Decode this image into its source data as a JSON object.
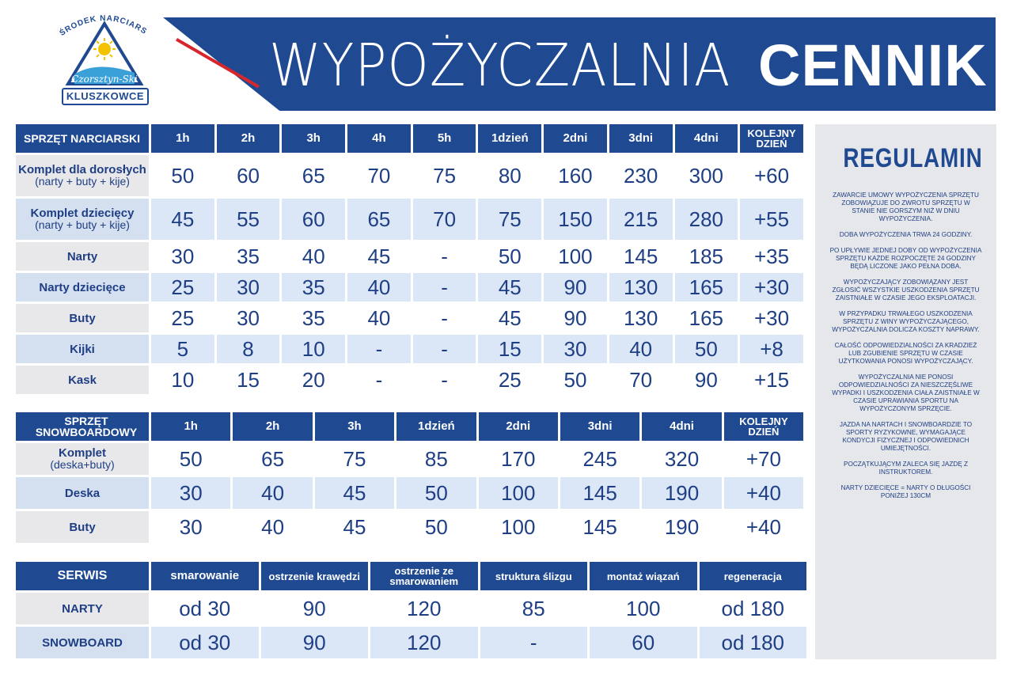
{
  "logo": {
    "arc_top": "OŚRODEK NARCIARSKI",
    "script": "Czorsztyn-Ski",
    "name": "KLUSZKOWCE"
  },
  "title": {
    "light": "WYPOŻYCZALNIA",
    "bold": "CENNIK"
  },
  "ski": {
    "header": "SPRZĘT NARCIARSKI",
    "columns": [
      "1h",
      "2h",
      "3h",
      "4h",
      "5h",
      "1dzień",
      "2dni",
      "3dni",
      "4dni",
      "KOLEJNY DZIEŃ"
    ],
    "rows": [
      {
        "label": "Komplet dla dorosłych",
        "sub": "(narty + buty + kije)",
        "values": [
          "50",
          "60",
          "65",
          "70",
          "75",
          "80",
          "160",
          "230",
          "300",
          "+60"
        ]
      },
      {
        "label": "Komplet dziecięcy",
        "sub": "(narty + buty + kije)",
        "values": [
          "45",
          "55",
          "60",
          "65",
          "70",
          "75",
          "150",
          "215",
          "280",
          "+55"
        ]
      },
      {
        "label": "Narty",
        "sub": "",
        "values": [
          "30",
          "35",
          "40",
          "45",
          "-",
          "50",
          "100",
          "145",
          "185",
          "+35"
        ]
      },
      {
        "label": "Narty dziecięce",
        "sub": "",
        "values": [
          "25",
          "30",
          "35",
          "40",
          "-",
          "45",
          "90",
          "130",
          "165",
          "+30"
        ]
      },
      {
        "label": "Buty",
        "sub": "",
        "values": [
          "25",
          "30",
          "35",
          "40",
          "-",
          "45",
          "90",
          "130",
          "165",
          "+30"
        ]
      },
      {
        "label": "Kijki",
        "sub": "",
        "values": [
          "5",
          "8",
          "10",
          "-",
          "-",
          "15",
          "30",
          "40",
          "50",
          "+8"
        ]
      },
      {
        "label": "Kask",
        "sub": "",
        "values": [
          "10",
          "15",
          "20",
          "-",
          "-",
          "25",
          "50",
          "70",
          "90",
          "+15"
        ]
      }
    ]
  },
  "snowboard": {
    "header": "SPRZĘT SNOWBOARDOWY",
    "columns": [
      "1h",
      "2h",
      "3h",
      "1dzień",
      "2dni",
      "3dni",
      "4dni",
      "KOLEJNY DZIEŃ"
    ],
    "rows": [
      {
        "label": "Komplet",
        "sub": "(deska+buty)",
        "values": [
          "50",
          "65",
          "75",
          "85",
          "170",
          "245",
          "320",
          "+70"
        ]
      },
      {
        "label": "Deska",
        "sub": "",
        "values": [
          "30",
          "40",
          "45",
          "50",
          "100",
          "145",
          "190",
          "+40"
        ]
      },
      {
        "label": "Buty",
        "sub": "",
        "values": [
          "30",
          "40",
          "45",
          "50",
          "100",
          "145",
          "190",
          "+40"
        ]
      }
    ]
  },
  "service": {
    "header": "SERWIS",
    "columns": [
      "smarowanie",
      "ostrzenie krawędzi",
      "ostrzenie ze smarowaniem",
      "struktura ślizgu",
      "montaż wiązań",
      "regeneracja"
    ],
    "rows": [
      {
        "label": "NARTY",
        "values": [
          "od 30",
          "90",
          "120",
          "85",
          "100",
          "od 180"
        ]
      },
      {
        "label": "SNOWBOARD",
        "values": [
          "od 30",
          "90",
          "120",
          "-",
          "60",
          "od 180"
        ]
      }
    ]
  },
  "regulamin": {
    "title": "REGULAMIN",
    "paragraphs": [
      "Zawarcie umowy wypożyczenia sprzętu zobowiązuje do zwrotu sprzętu w stanie nie gorszym niż w dniu wypożyczenia.",
      "Doba wypożyczenia trwa 24 godziny.",
      "Po upływie jednej doby od wypożyczenia sprzętu każde rozpoczęte 24 godziny będą liczone jako pełna doba.",
      "Wypożyczający zobowiązany jest zgłosić wszystkie uszkodzenia sprzętu zaistniałe w czasie jego eksploatacji.",
      "W przypadku trwałego uszkodzenia sprzętu z winy wypożyczającego, wypożyczalnia dolicza koszty naprawy.",
      "Całość odpowiedzialności za kradzież lub zgubienie sprzętu w czasie użytkowania ponosi wypożyczający.",
      "Wypożyczalnia nie ponosi odpowiedzialności za nieszczęśliwe wypadki i uszkodzenia ciała zaistniałe w czasie uprawiania sportu na wypożyczonym sprzęcie.",
      "Jazda na nartach i snowboardzie to sporty ryzykowne, wymagające kondycji fizycznej i odpowiednich umiejętności.",
      "Początkującym zaleca się jazdę z instruktorem.",
      "Narty dziecięce = narty o długości poniżej 130cm"
    ]
  },
  "colors": {
    "primary": "#1f4a92",
    "stripe": "#d7262c",
    "light_row": "#dbe6f6",
    "grey": "#e6e7ea"
  }
}
